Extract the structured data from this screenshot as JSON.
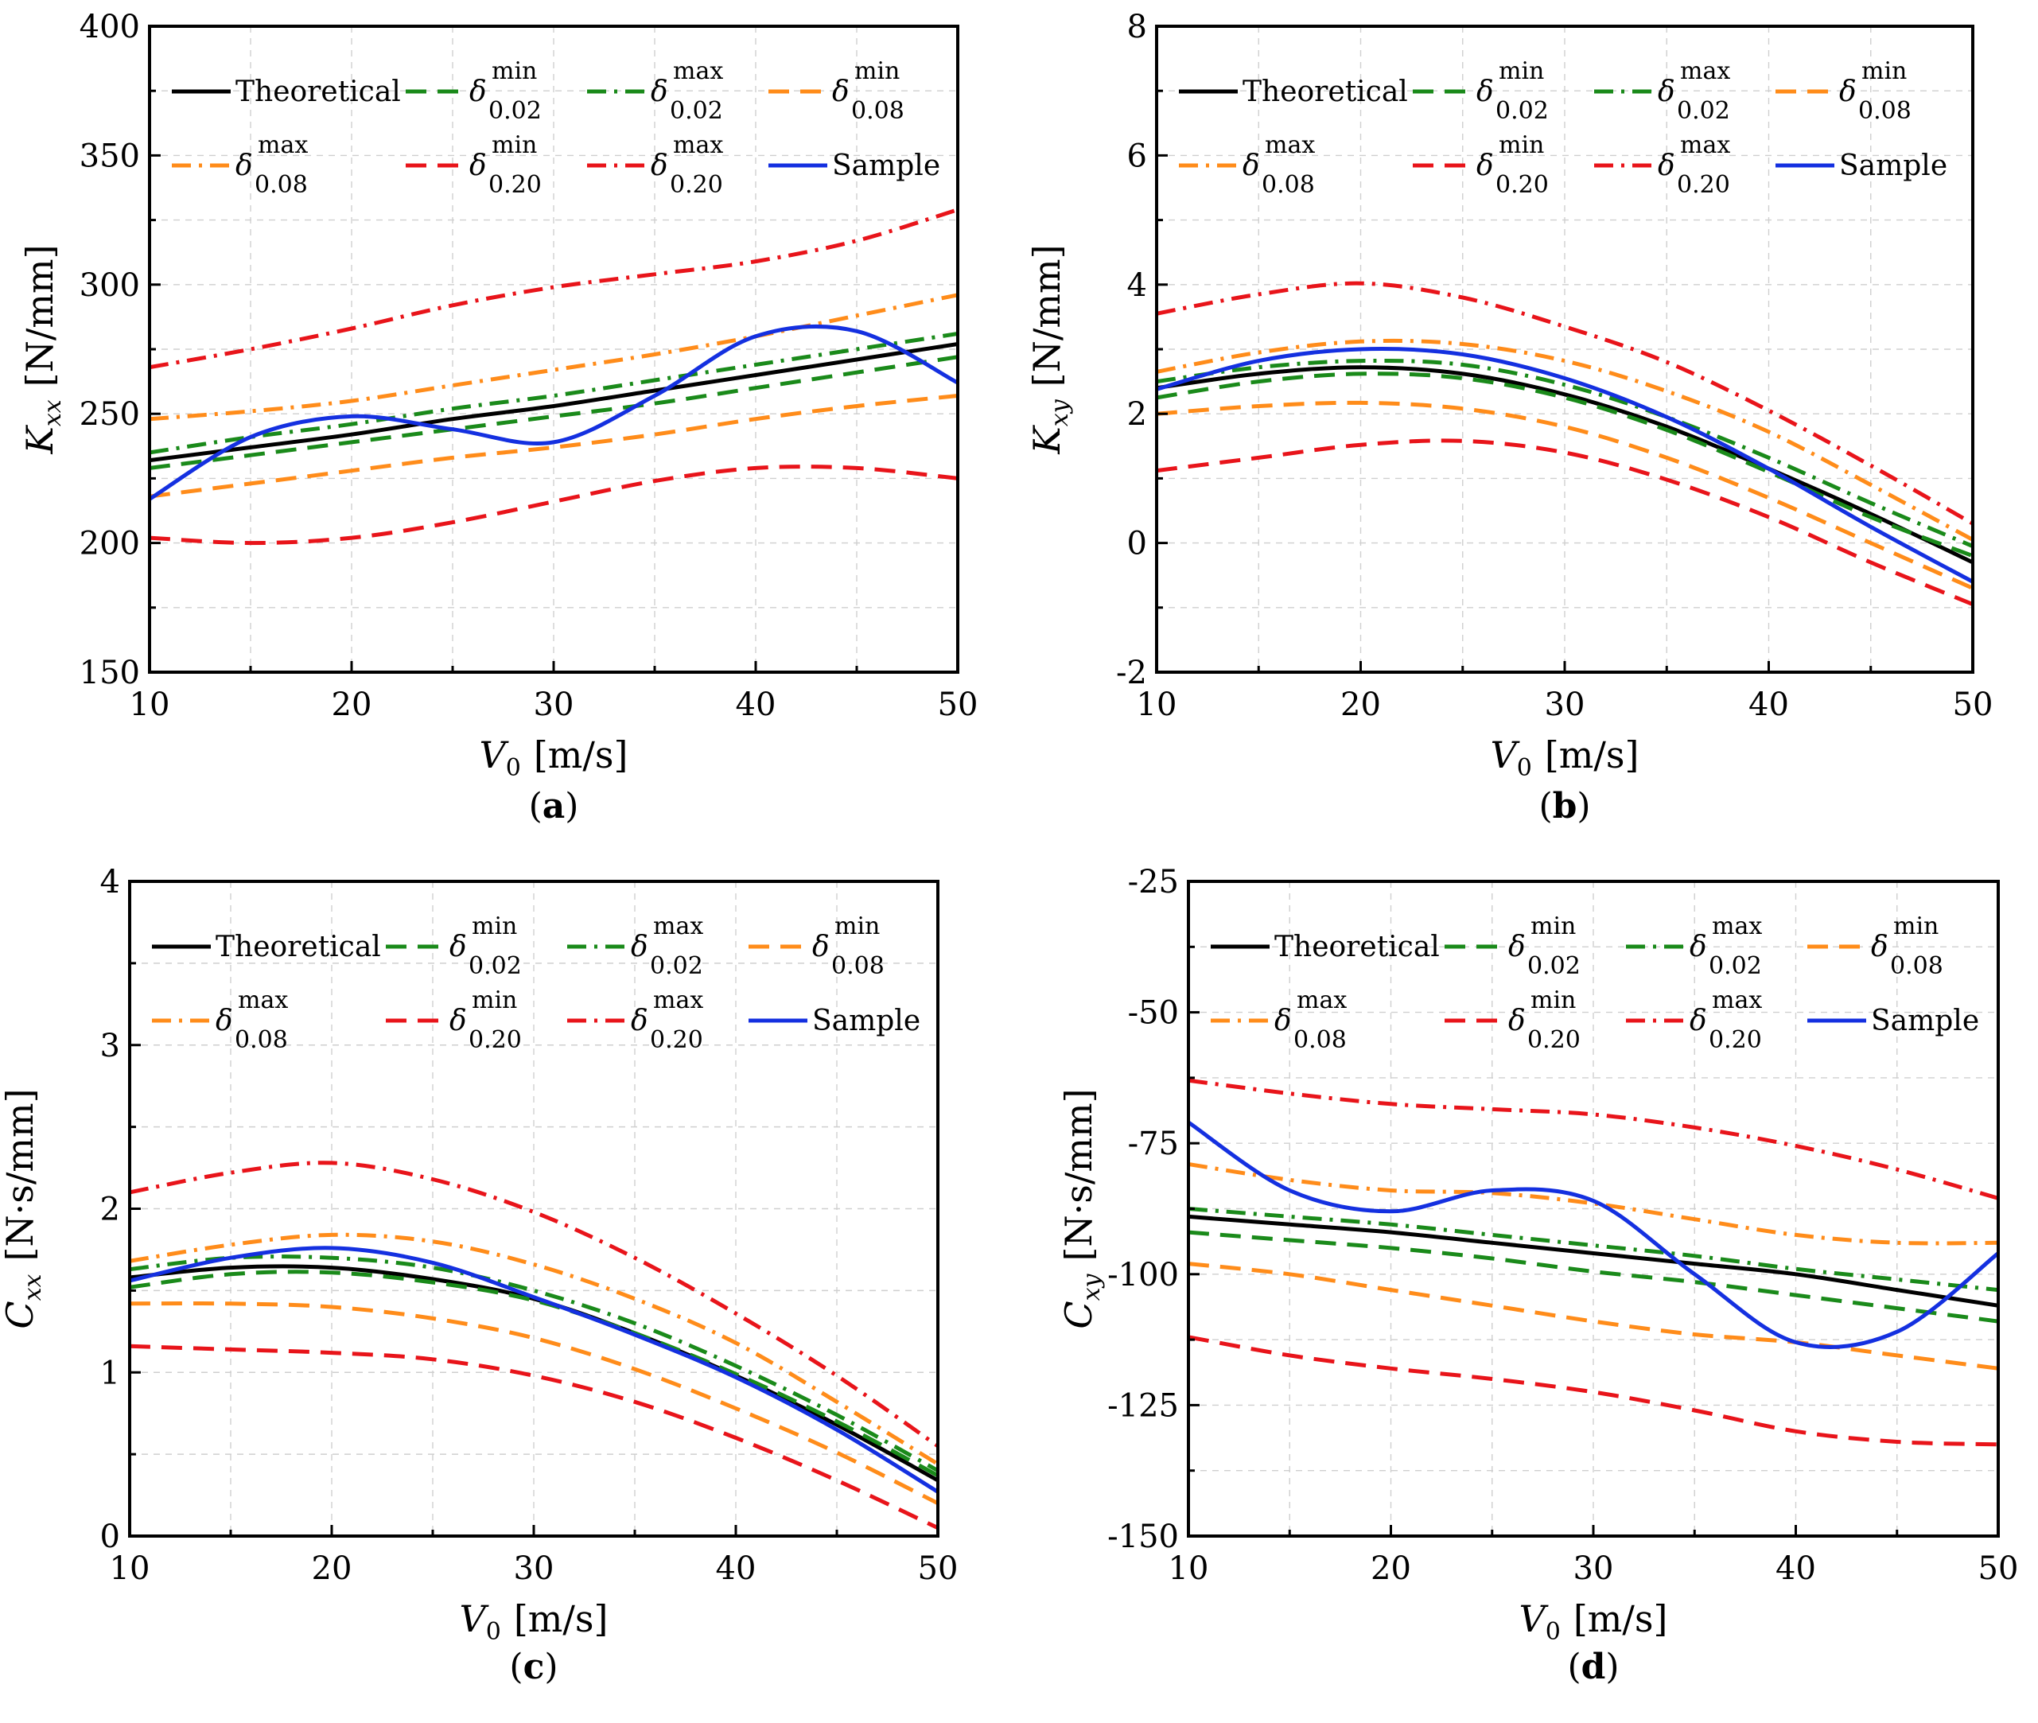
{
  "styles": {
    "theoretical": {
      "color": "#000000",
      "dash": "solid"
    },
    "d002min": {
      "color": "#1a8a1a",
      "dash": "dash"
    },
    "d002max": {
      "color": "#1a8a1a",
      "dash": "dashdot"
    },
    "d008min": {
      "color": "#ff8c1a",
      "dash": "dash"
    },
    "d008max": {
      "color": "#ff8c1a",
      "dash": "dashdot"
    },
    "d020min": {
      "color": "#e8141a",
      "dash": "dash"
    },
    "d020max": {
      "color": "#e8141a",
      "dash": "dashdot"
    },
    "sample": {
      "color": "#1430e0",
      "dash": "solid"
    }
  },
  "legend": [
    {
      "key": "theoretical",
      "label": "Theoretical"
    },
    {
      "key": "d002min",
      "symbol": "δ",
      "sup": "min",
      "sub": "0.02"
    },
    {
      "key": "d002max",
      "symbol": "δ",
      "sup": "max",
      "sub": "0.02"
    },
    {
      "key": "d008min",
      "symbol": "δ",
      "sup": "min",
      "sub": "0.08"
    },
    {
      "key": "d008max",
      "symbol": "δ",
      "sup": "max",
      "sub": "0.08"
    },
    {
      "key": "d020min",
      "symbol": "δ",
      "sup": "min",
      "sub": "0.20"
    },
    {
      "key": "d020max",
      "symbol": "δ",
      "sup": "max",
      "sub": "0.20"
    },
    {
      "key": "sample",
      "label": "Sample"
    }
  ],
  "chart_data": [
    {
      "type": "line",
      "panel_label": "(a)",
      "ylabel": {
        "symbol": "K",
        "sub": "xx",
        "unit": "[N/mm]"
      },
      "xlabel": {
        "symbol": "V",
        "sub": "0",
        "unit": "[m/s]"
      },
      "xlim": [
        10,
        50
      ],
      "ylim": [
        150,
        400
      ],
      "xticks": [
        10,
        20,
        30,
        40,
        50
      ],
      "yticks": [
        150,
        200,
        250,
        300,
        350,
        400
      ],
      "x": [
        10,
        15,
        20,
        25,
        30,
        35,
        40,
        45,
        50
      ],
      "series": [
        {
          "key": "theoretical",
          "values": [
            232,
            237,
            242,
            248,
            253,
            259,
            265,
            271,
            277
          ]
        },
        {
          "key": "d002min",
          "values": [
            229,
            234,
            239,
            244,
            249,
            254,
            260,
            266,
            272
          ]
        },
        {
          "key": "d002max",
          "values": [
            235,
            241,
            246,
            252,
            257,
            263,
            269,
            275,
            281
          ]
        },
        {
          "key": "d008min",
          "values": [
            218,
            223,
            228,
            233,
            237,
            242,
            248,
            253,
            257
          ]
        },
        {
          "key": "d008max",
          "values": [
            248,
            251,
            255,
            261,
            267,
            273,
            280,
            288,
            296
          ]
        },
        {
          "key": "d020min",
          "values": [
            202,
            200,
            202,
            208,
            216,
            224,
            229,
            229,
            225
          ]
        },
        {
          "key": "d020max",
          "values": [
            268,
            275,
            283,
            292,
            299,
            304,
            309,
            317,
            329
          ]
        },
        {
          "key": "sample",
          "values": [
            217,
            241,
            249,
            244,
            239,
            257,
            280,
            282,
            262
          ]
        }
      ]
    },
    {
      "type": "line",
      "panel_label": "(b)",
      "ylabel": {
        "symbol": "K",
        "sub": "xy",
        "unit": "[N/mm]"
      },
      "xlabel": {
        "symbol": "V",
        "sub": "0",
        "unit": "[m/s]"
      },
      "xlim": [
        10,
        50
      ],
      "ylim": [
        -2,
        8
      ],
      "xticks": [
        10,
        20,
        30,
        40,
        50
      ],
      "yticks": [
        -2,
        0,
        2,
        4,
        6,
        8
      ],
      "x": [
        10,
        15,
        20,
        25,
        30,
        35,
        40,
        45,
        50
      ],
      "series": [
        {
          "key": "theoretical",
          "values": [
            2.4,
            2.62,
            2.72,
            2.62,
            2.3,
            1.8,
            1.15,
            0.45,
            -0.3
          ]
        },
        {
          "key": "d002min",
          "values": [
            2.25,
            2.5,
            2.62,
            2.55,
            2.25,
            1.75,
            1.1,
            0.4,
            -0.2
          ]
        },
        {
          "key": "d002max",
          "values": [
            2.5,
            2.72,
            2.82,
            2.76,
            2.45,
            1.95,
            1.32,
            0.62,
            -0.05
          ]
        },
        {
          "key": "d008min",
          "values": [
            2.0,
            2.12,
            2.17,
            2.08,
            1.8,
            1.32,
            0.7,
            0.0,
            -0.7
          ]
        },
        {
          "key": "d008max",
          "values": [
            2.65,
            2.95,
            3.12,
            3.08,
            2.82,
            2.35,
            1.72,
            0.9,
            0.05
          ]
        },
        {
          "key": "d020min",
          "values": [
            1.12,
            1.32,
            1.52,
            1.58,
            1.4,
            0.98,
            0.4,
            -0.3,
            -0.95
          ]
        },
        {
          "key": "d020max",
          "values": [
            3.55,
            3.85,
            4.02,
            3.8,
            3.35,
            2.8,
            2.05,
            1.2,
            0.3
          ]
        },
        {
          "key": "sample",
          "values": [
            2.38,
            2.82,
            3.0,
            2.92,
            2.55,
            1.95,
            1.15,
            0.25,
            -0.6
          ]
        }
      ]
    },
    {
      "type": "line",
      "panel_label": "(c)",
      "ylabel": {
        "symbol": "C",
        "sub": "xx",
        "unit": "[N·s/mm]"
      },
      "xlabel": {
        "symbol": "V",
        "sub": "0",
        "unit": "[m/s]"
      },
      "xlim": [
        10,
        50
      ],
      "ylim": [
        0,
        4
      ],
      "xticks": [
        10,
        20,
        30,
        40,
        50
      ],
      "yticks": [
        0,
        1,
        2,
        3,
        4
      ],
      "x": [
        10,
        15,
        20,
        25,
        30,
        35,
        40,
        45,
        50
      ],
      "series": [
        {
          "key": "theoretical",
          "values": [
            1.58,
            1.64,
            1.64,
            1.57,
            1.45,
            1.24,
            0.98,
            0.68,
            0.34
          ]
        },
        {
          "key": "d002min",
          "values": [
            1.52,
            1.6,
            1.61,
            1.55,
            1.44,
            1.24,
            0.99,
            0.7,
            0.37
          ]
        },
        {
          "key": "d002max",
          "values": [
            1.63,
            1.7,
            1.7,
            1.64,
            1.5,
            1.3,
            1.04,
            0.74,
            0.4
          ]
        },
        {
          "key": "d008min",
          "values": [
            1.42,
            1.42,
            1.4,
            1.33,
            1.21,
            1.02,
            0.78,
            0.51,
            0.2
          ]
        },
        {
          "key": "d008max",
          "values": [
            1.68,
            1.78,
            1.84,
            1.8,
            1.66,
            1.45,
            1.18,
            0.82,
            0.44
          ]
        },
        {
          "key": "d020min",
          "values": [
            1.16,
            1.14,
            1.12,
            1.08,
            0.98,
            0.82,
            0.6,
            0.34,
            0.05
          ]
        },
        {
          "key": "d020max",
          "values": [
            2.1,
            2.22,
            2.28,
            2.18,
            1.98,
            1.7,
            1.36,
            0.98,
            0.55
          ]
        },
        {
          "key": "sample",
          "values": [
            1.56,
            1.7,
            1.76,
            1.67,
            1.46,
            1.23,
            0.97,
            0.65,
            0.27
          ]
        }
      ]
    },
    {
      "type": "line",
      "panel_label": "(d)",
      "ylabel": {
        "symbol": "C",
        "sub": "xy",
        "unit": "[N·s/mm]"
      },
      "xlabel": {
        "symbol": "V",
        "sub": "0",
        "unit": "[m/s]"
      },
      "xlim": [
        10,
        50
      ],
      "ylim": [
        -150,
        -25
      ],
      "xticks": [
        10,
        20,
        30,
        40,
        50
      ],
      "yticks": [
        -150,
        -125,
        -100,
        -75,
        -50,
        -25
      ],
      "x": [
        10,
        15,
        20,
        25,
        30,
        35,
        40,
        45,
        50
      ],
      "series": [
        {
          "key": "theoretical",
          "values": [
            -89,
            -90.5,
            -92,
            -94,
            -96,
            -98,
            -100,
            -103,
            -106
          ]
        },
        {
          "key": "d002min",
          "values": [
            -92,
            -93.5,
            -95,
            -97,
            -99.5,
            -101.5,
            -104,
            -106.5,
            -109
          ]
        },
        {
          "key": "d002max",
          "values": [
            -87.5,
            -89,
            -90.5,
            -92.5,
            -94.5,
            -96.5,
            -99,
            -101,
            -103
          ]
        },
        {
          "key": "d008min",
          "values": [
            -98,
            -100,
            -103,
            -106,
            -109,
            -111.5,
            -113,
            -115.5,
            -118
          ]
        },
        {
          "key": "d008max",
          "values": [
            -79,
            -82,
            -84,
            -84.5,
            -86.5,
            -89.5,
            -92.5,
            -94,
            -94
          ]
        },
        {
          "key": "d020min",
          "values": [
            -112,
            -115.5,
            -118,
            -120,
            -122.5,
            -126,
            -130,
            -132,
            -132.5
          ]
        },
        {
          "key": "d020max",
          "values": [
            -63,
            -65.5,
            -67.5,
            -68.5,
            -69.5,
            -72,
            -75.5,
            -80,
            -85.5
          ]
        },
        {
          "key": "sample",
          "values": [
            -71,
            -84,
            -88,
            -84,
            -86,
            -100,
            -113,
            -111,
            -96
          ]
        }
      ]
    }
  ]
}
